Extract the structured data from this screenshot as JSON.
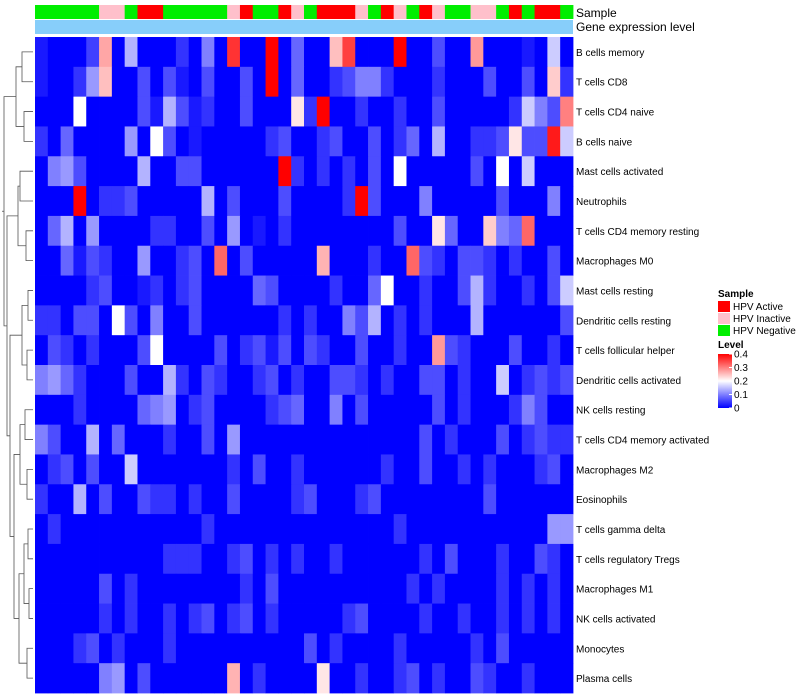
{
  "chart_data": {
    "type": "heatmap",
    "title": "",
    "annotation_titles": [
      "Sample",
      "Gene expression level"
    ],
    "rows": [
      "B cells memory",
      "T cells CD8",
      "T cells CD4 naive",
      "B cells naive",
      "Mast cells activated",
      "Neutrophils",
      "T cells CD4 memory resting",
      "Macrophages M0",
      "Mast cells resting",
      "Dendritic cells resting",
      "T cells follicular helper",
      "Dendritic cells activated",
      "NK cells resting",
      "T cells CD4 memory activated",
      "Macrophages M2",
      "Eosinophils",
      "T cells gamma delta",
      "T cells regulatory  Tregs",
      "Macrophages M1",
      "NK cells activated",
      "Monocytes",
      "Plasma cells"
    ],
    "sample_groups": [
      "HPV Negative",
      "HPV Negative",
      "HPV Negative",
      "HPV Negative",
      "HPV Negative",
      "HPV Inactive",
      "HPV Inactive",
      "HPV Negative",
      "HPV Active",
      "HPV Active",
      "HPV Negative",
      "HPV Negative",
      "HPV Negative",
      "HPV Negative",
      "HPV Negative",
      "HPV Inactive",
      "HPV Active",
      "HPV Negative",
      "HPV Negative",
      "HPV Active",
      "HPV Inactive",
      "HPV Negative",
      "HPV Active",
      "HPV Active",
      "HPV Active",
      "HPV Inactive",
      "HPV Negative",
      "HPV Active",
      "HPV Inactive",
      "HPV Negative",
      "HPV Active",
      "HPV Inactive",
      "HPV Negative",
      "HPV Negative",
      "HPV Inactive",
      "HPV Inactive",
      "HPV Negative",
      "HPV Active",
      "HPV Negative",
      "HPV Active",
      "HPV Active",
      "HPV Negative"
    ],
    "values": [
      [
        0.02,
        0.0,
        0.0,
        0.0,
        0.05,
        0.27,
        0.0,
        0.14,
        0.0,
        0.0,
        0.0,
        0.04,
        0.0,
        0.1,
        0.0,
        0.36,
        0.0,
        0.0,
        0.4,
        0.0,
        0.08,
        0.0,
        0.0,
        0.25,
        0.35,
        0.0,
        0.0,
        0.0,
        0.4,
        0.0,
        0.0,
        0.06,
        0.0,
        0.0,
        0.28,
        0.0,
        0.0,
        0.0,
        0.02,
        0.0,
        0.16,
        0.0
      ],
      [
        0.02,
        0.0,
        0.0,
        0.04,
        0.12,
        0.25,
        0.0,
        0.0,
        0.06,
        0.0,
        0.06,
        0.02,
        0.0,
        0.06,
        0.0,
        0.0,
        0.06,
        0.0,
        0.4,
        0.0,
        0.08,
        0.0,
        0.0,
        0.04,
        0.06,
        0.1,
        0.1,
        0.04,
        0.0,
        0.0,
        0.0,
        0.04,
        0.0,
        0.0,
        0.0,
        0.06,
        0.0,
        0.0,
        0.06,
        0.0,
        0.24,
        0.04
      ],
      [
        0.0,
        0.0,
        0.0,
        0.2,
        0.0,
        0.0,
        0.0,
        0.0,
        0.06,
        0.02,
        0.14,
        0.06,
        0.02,
        0.04,
        0.0,
        0.0,
        0.06,
        0.0,
        0.0,
        0.0,
        0.22,
        0.04,
        0.4,
        0.0,
        0.0,
        0.04,
        0.0,
        0.0,
        0.04,
        0.0,
        0.0,
        0.06,
        0.0,
        0.0,
        0.0,
        0.0,
        0.0,
        0.04,
        0.16,
        0.1,
        0.06,
        0.3
      ],
      [
        0.04,
        0.0,
        0.08,
        0.0,
        0.0,
        0.0,
        0.0,
        0.12,
        0.0,
        0.2,
        0.06,
        0.0,
        0.02,
        0.0,
        0.0,
        0.0,
        0.0,
        0.0,
        0.04,
        0.06,
        0.0,
        0.0,
        0.04,
        0.06,
        0.0,
        0.0,
        0.06,
        0.0,
        0.04,
        0.08,
        0.0,
        0.14,
        0.0,
        0.0,
        0.04,
        0.04,
        0.06,
        0.22,
        0.06,
        0.06,
        0.38,
        0.16
      ],
      [
        0.0,
        0.1,
        0.12,
        0.06,
        0.0,
        0.0,
        0.0,
        0.0,
        0.14,
        0.0,
        0.0,
        0.06,
        0.06,
        0.0,
        0.0,
        0.0,
        0.0,
        0.0,
        0.0,
        0.4,
        0.04,
        0.0,
        0.04,
        0.0,
        0.04,
        0.0,
        0.06,
        0.0,
        0.2,
        0.0,
        0.0,
        0.0,
        0.0,
        0.0,
        0.06,
        0.0,
        0.2,
        0.0,
        0.16,
        0.0,
        0.0,
        0.0
      ],
      [
        0.0,
        0.0,
        0.0,
        0.4,
        0.0,
        0.04,
        0.04,
        0.06,
        0.0,
        0.0,
        0.0,
        0.0,
        0.0,
        0.14,
        0.0,
        0.06,
        0.0,
        0.0,
        0.0,
        0.06,
        0.0,
        0.0,
        0.0,
        0.0,
        0.04,
        0.4,
        0.06,
        0.0,
        0.0,
        0.0,
        0.1,
        0.0,
        0.0,
        0.0,
        0.0,
        0.0,
        0.06,
        0.0,
        0.0,
        0.0,
        0.1,
        0.0
      ],
      [
        0.0,
        0.08,
        0.14,
        0.0,
        0.12,
        0.0,
        0.0,
        0.0,
        0.0,
        0.04,
        0.04,
        0.0,
        0.0,
        0.06,
        0.0,
        0.12,
        0.0,
        0.02,
        0.0,
        0.04,
        0.0,
        0.0,
        0.0,
        0.0,
        0.0,
        0.0,
        0.0,
        0.0,
        0.06,
        0.0,
        0.0,
        0.22,
        0.08,
        0.0,
        0.0,
        0.24,
        0.1,
        0.08,
        0.32,
        0.0,
        0.0,
        0.0
      ],
      [
        0.0,
        0.0,
        0.08,
        0.02,
        0.06,
        0.04,
        0.0,
        0.0,
        0.12,
        0.0,
        0.0,
        0.04,
        0.06,
        0.0,
        0.32,
        0.0,
        0.06,
        0.0,
        0.0,
        0.0,
        0.0,
        0.0,
        0.26,
        0.0,
        0.0,
        0.0,
        0.04,
        0.0,
        0.0,
        0.32,
        0.06,
        0.04,
        0.0,
        0.06,
        0.06,
        0.04,
        0.0,
        0.04,
        0.0,
        0.0,
        0.06,
        0.0
      ],
      [
        0.0,
        0.0,
        0.0,
        0.0,
        0.04,
        0.06,
        0.0,
        0.0,
        0.02,
        0.04,
        0.0,
        0.04,
        0.06,
        0.0,
        0.0,
        0.0,
        0.0,
        0.08,
        0.06,
        0.0,
        0.0,
        0.0,
        0.0,
        0.04,
        0.0,
        0.0,
        0.08,
        0.2,
        0.0,
        0.0,
        0.04,
        0.0,
        0.0,
        0.06,
        0.14,
        0.04,
        0.0,
        0.0,
        0.04,
        0.0,
        0.06,
        0.16
      ],
      [
        0.04,
        0.04,
        0.0,
        0.06,
        0.06,
        0.0,
        0.2,
        0.06,
        0.0,
        0.1,
        0.0,
        0.0,
        0.06,
        0.0,
        0.0,
        0.0,
        0.0,
        0.0,
        0.0,
        0.04,
        0.0,
        0.04,
        0.0,
        0.0,
        0.1,
        0.06,
        0.14,
        0.0,
        0.04,
        0.0,
        0.04,
        0.0,
        0.0,
        0.0,
        0.14,
        0.0,
        0.0,
        0.0,
        0.0,
        0.0,
        0.0,
        0.06
      ],
      [
        0.0,
        0.06,
        0.04,
        0.0,
        0.04,
        0.0,
        0.0,
        0.0,
        0.06,
        0.2,
        0.0,
        0.0,
        0.0,
        0.0,
        0.06,
        0.0,
        0.04,
        0.06,
        0.02,
        0.06,
        0.0,
        0.06,
        0.04,
        0.0,
        0.0,
        0.06,
        0.0,
        0.0,
        0.04,
        0.0,
        0.0,
        0.28,
        0.06,
        0.04,
        0.0,
        0.0,
        0.0,
        0.06,
        0.0,
        0.0,
        0.04,
        0.0
      ],
      [
        0.1,
        0.12,
        0.08,
        0.04,
        0.0,
        0.0,
        0.0,
        0.06,
        0.0,
        0.0,
        0.14,
        0.04,
        0.0,
        0.06,
        0.04,
        0.0,
        0.0,
        0.04,
        0.06,
        0.0,
        0.04,
        0.0,
        0.0,
        0.06,
        0.06,
        0.04,
        0.0,
        0.04,
        0.0,
        0.0,
        0.06,
        0.06,
        0.0,
        0.04,
        0.0,
        0.0,
        0.16,
        0.0,
        0.04,
        0.06,
        0.04,
        0.06
      ],
      [
        0.0,
        0.0,
        0.0,
        0.04,
        0.0,
        0.0,
        0.0,
        0.0,
        0.08,
        0.1,
        0.12,
        0.0,
        0.04,
        0.06,
        0.0,
        0.0,
        0.0,
        0.0,
        0.04,
        0.06,
        0.08,
        0.0,
        0.0,
        0.1,
        0.0,
        0.06,
        0.0,
        0.0,
        0.0,
        0.0,
        0.0,
        0.06,
        0.0,
        0.04,
        0.0,
        0.0,
        0.0,
        0.04,
        0.1,
        0.06,
        0.0,
        0.0
      ],
      [
        0.1,
        0.06,
        0.0,
        0.0,
        0.14,
        0.0,
        0.08,
        0.0,
        0.0,
        0.0,
        0.04,
        0.0,
        0.0,
        0.06,
        0.0,
        0.12,
        0.0,
        0.0,
        0.0,
        0.0,
        0.0,
        0.0,
        0.0,
        0.0,
        0.0,
        0.0,
        0.0,
        0.0,
        0.0,
        0.0,
        0.06,
        0.0,
        0.04,
        0.0,
        0.0,
        0.0,
        0.06,
        0.0,
        0.04,
        0.06,
        0.04,
        0.04
      ],
      [
        0.0,
        0.04,
        0.06,
        0.0,
        0.06,
        0.0,
        0.0,
        0.16,
        0.0,
        0.0,
        0.0,
        0.0,
        0.0,
        0.0,
        0.0,
        0.04,
        0.0,
        0.06,
        0.0,
        0.0,
        0.04,
        0.0,
        0.0,
        0.0,
        0.0,
        0.0,
        0.0,
        0.04,
        0.0,
        0.0,
        0.06,
        0.0,
        0.0,
        0.04,
        0.0,
        0.04,
        0.0,
        0.0,
        0.0,
        0.04,
        0.06,
        0.0
      ],
      [
        0.04,
        0.0,
        0.0,
        0.14,
        0.0,
        0.06,
        0.0,
        0.0,
        0.06,
        0.04,
        0.04,
        0.0,
        0.04,
        0.0,
        0.0,
        0.06,
        0.0,
        0.0,
        0.0,
        0.0,
        0.04,
        0.06,
        0.0,
        0.0,
        0.0,
        0.04,
        0.06,
        0.0,
        0.0,
        0.0,
        0.0,
        0.0,
        0.0,
        0.0,
        0.0,
        0.06,
        0.0,
        0.0,
        0.0,
        0.0,
        0.0,
        0.0
      ],
      [
        0.0,
        0.04,
        0.0,
        0.0,
        0.0,
        0.0,
        0.0,
        0.0,
        0.0,
        0.0,
        0.0,
        0.0,
        0.0,
        0.04,
        0.0,
        0.0,
        0.0,
        0.0,
        0.0,
        0.0,
        0.0,
        0.0,
        0.0,
        0.0,
        0.0,
        0.0,
        0.0,
        0.0,
        0.04,
        0.0,
        0.0,
        0.0,
        0.0,
        0.0,
        0.0,
        0.0,
        0.0,
        0.0,
        0.0,
        0.0,
        0.12,
        0.12
      ],
      [
        0.0,
        0.0,
        0.0,
        0.0,
        0.0,
        0.0,
        0.0,
        0.0,
        0.0,
        0.0,
        0.04,
        0.04,
        0.04,
        0.0,
        0.0,
        0.04,
        0.06,
        0.0,
        0.04,
        0.0,
        0.04,
        0.0,
        0.0,
        0.04,
        0.0,
        0.0,
        0.0,
        0.0,
        0.0,
        0.0,
        0.04,
        0.0,
        0.06,
        0.0,
        0.0,
        0.0,
        0.04,
        0.0,
        0.0,
        0.06,
        0.04,
        0.0
      ],
      [
        0.0,
        0.0,
        0.0,
        0.0,
        0.0,
        0.06,
        0.0,
        0.04,
        0.0,
        0.0,
        0.0,
        0.0,
        0.0,
        0.0,
        0.0,
        0.0,
        0.04,
        0.0,
        0.06,
        0.0,
        0.0,
        0.0,
        0.0,
        0.0,
        0.0,
        0.0,
        0.0,
        0.0,
        0.0,
        0.04,
        0.0,
        0.04,
        0.0,
        0.0,
        0.0,
        0.0,
        0.04,
        0.0,
        0.04,
        0.0,
        0.04,
        0.0
      ],
      [
        0.0,
        0.0,
        0.0,
        0.0,
        0.0,
        0.04,
        0.0,
        0.04,
        0.0,
        0.0,
        0.04,
        0.0,
        0.04,
        0.06,
        0.0,
        0.04,
        0.06,
        0.0,
        0.04,
        0.0,
        0.0,
        0.0,
        0.0,
        0.0,
        0.04,
        0.06,
        0.0,
        0.0,
        0.0,
        0.0,
        0.04,
        0.0,
        0.0,
        0.04,
        0.0,
        0.0,
        0.04,
        0.0,
        0.04,
        0.0,
        0.04,
        0.0
      ],
      [
        0.0,
        0.0,
        0.0,
        0.04,
        0.06,
        0.0,
        0.04,
        0.0,
        0.0,
        0.0,
        0.04,
        0.0,
        0.0,
        0.0,
        0.0,
        0.0,
        0.0,
        0.0,
        0.0,
        0.0,
        0.0,
        0.06,
        0.0,
        0.04,
        0.0,
        0.0,
        0.0,
        0.0,
        0.04,
        0.0,
        0.0,
        0.0,
        0.0,
        0.0,
        0.04,
        0.0,
        0.06,
        0.0,
        0.0,
        0.0,
        0.0,
        0.0
      ],
      [
        0.0,
        0.0,
        0.0,
        0.0,
        0.0,
        0.1,
        0.12,
        0.0,
        0.06,
        0.0,
        0.0,
        0.0,
        0.0,
        0.0,
        0.0,
        0.26,
        0.0,
        0.04,
        0.0,
        0.0,
        0.0,
        0.0,
        0.22,
        0.0,
        0.0,
        0.04,
        0.0,
        0.0,
        0.04,
        0.06,
        0.0,
        0.04,
        0.0,
        0.0,
        0.06,
        0.04,
        0.0,
        0.0,
        0.04,
        0.0,
        0.0,
        0.0
      ]
    ],
    "legend_sample": {
      "title": "Sample",
      "entries": [
        {
          "label": "HPV Active",
          "color": "#ff0000"
        },
        {
          "label": "HPV Inactive",
          "color": "#ffc0cb"
        },
        {
          "label": "HPV Negative",
          "color": "#00ee00"
        }
      ]
    },
    "legend_level": {
      "title": "Level",
      "ticks": [
        0.4,
        0.3,
        0.2,
        0.1,
        0
      ],
      "tick_labels": [
        "0.4",
        "0.3",
        "0.2",
        "0.1",
        "0"
      ],
      "range": [
        0,
        0.4
      ],
      "colors": {
        "low": "#0000ff",
        "mid": "#ffffff",
        "high": "#ff0000"
      }
    },
    "gene_expression_bar_color": "#87cefa"
  }
}
